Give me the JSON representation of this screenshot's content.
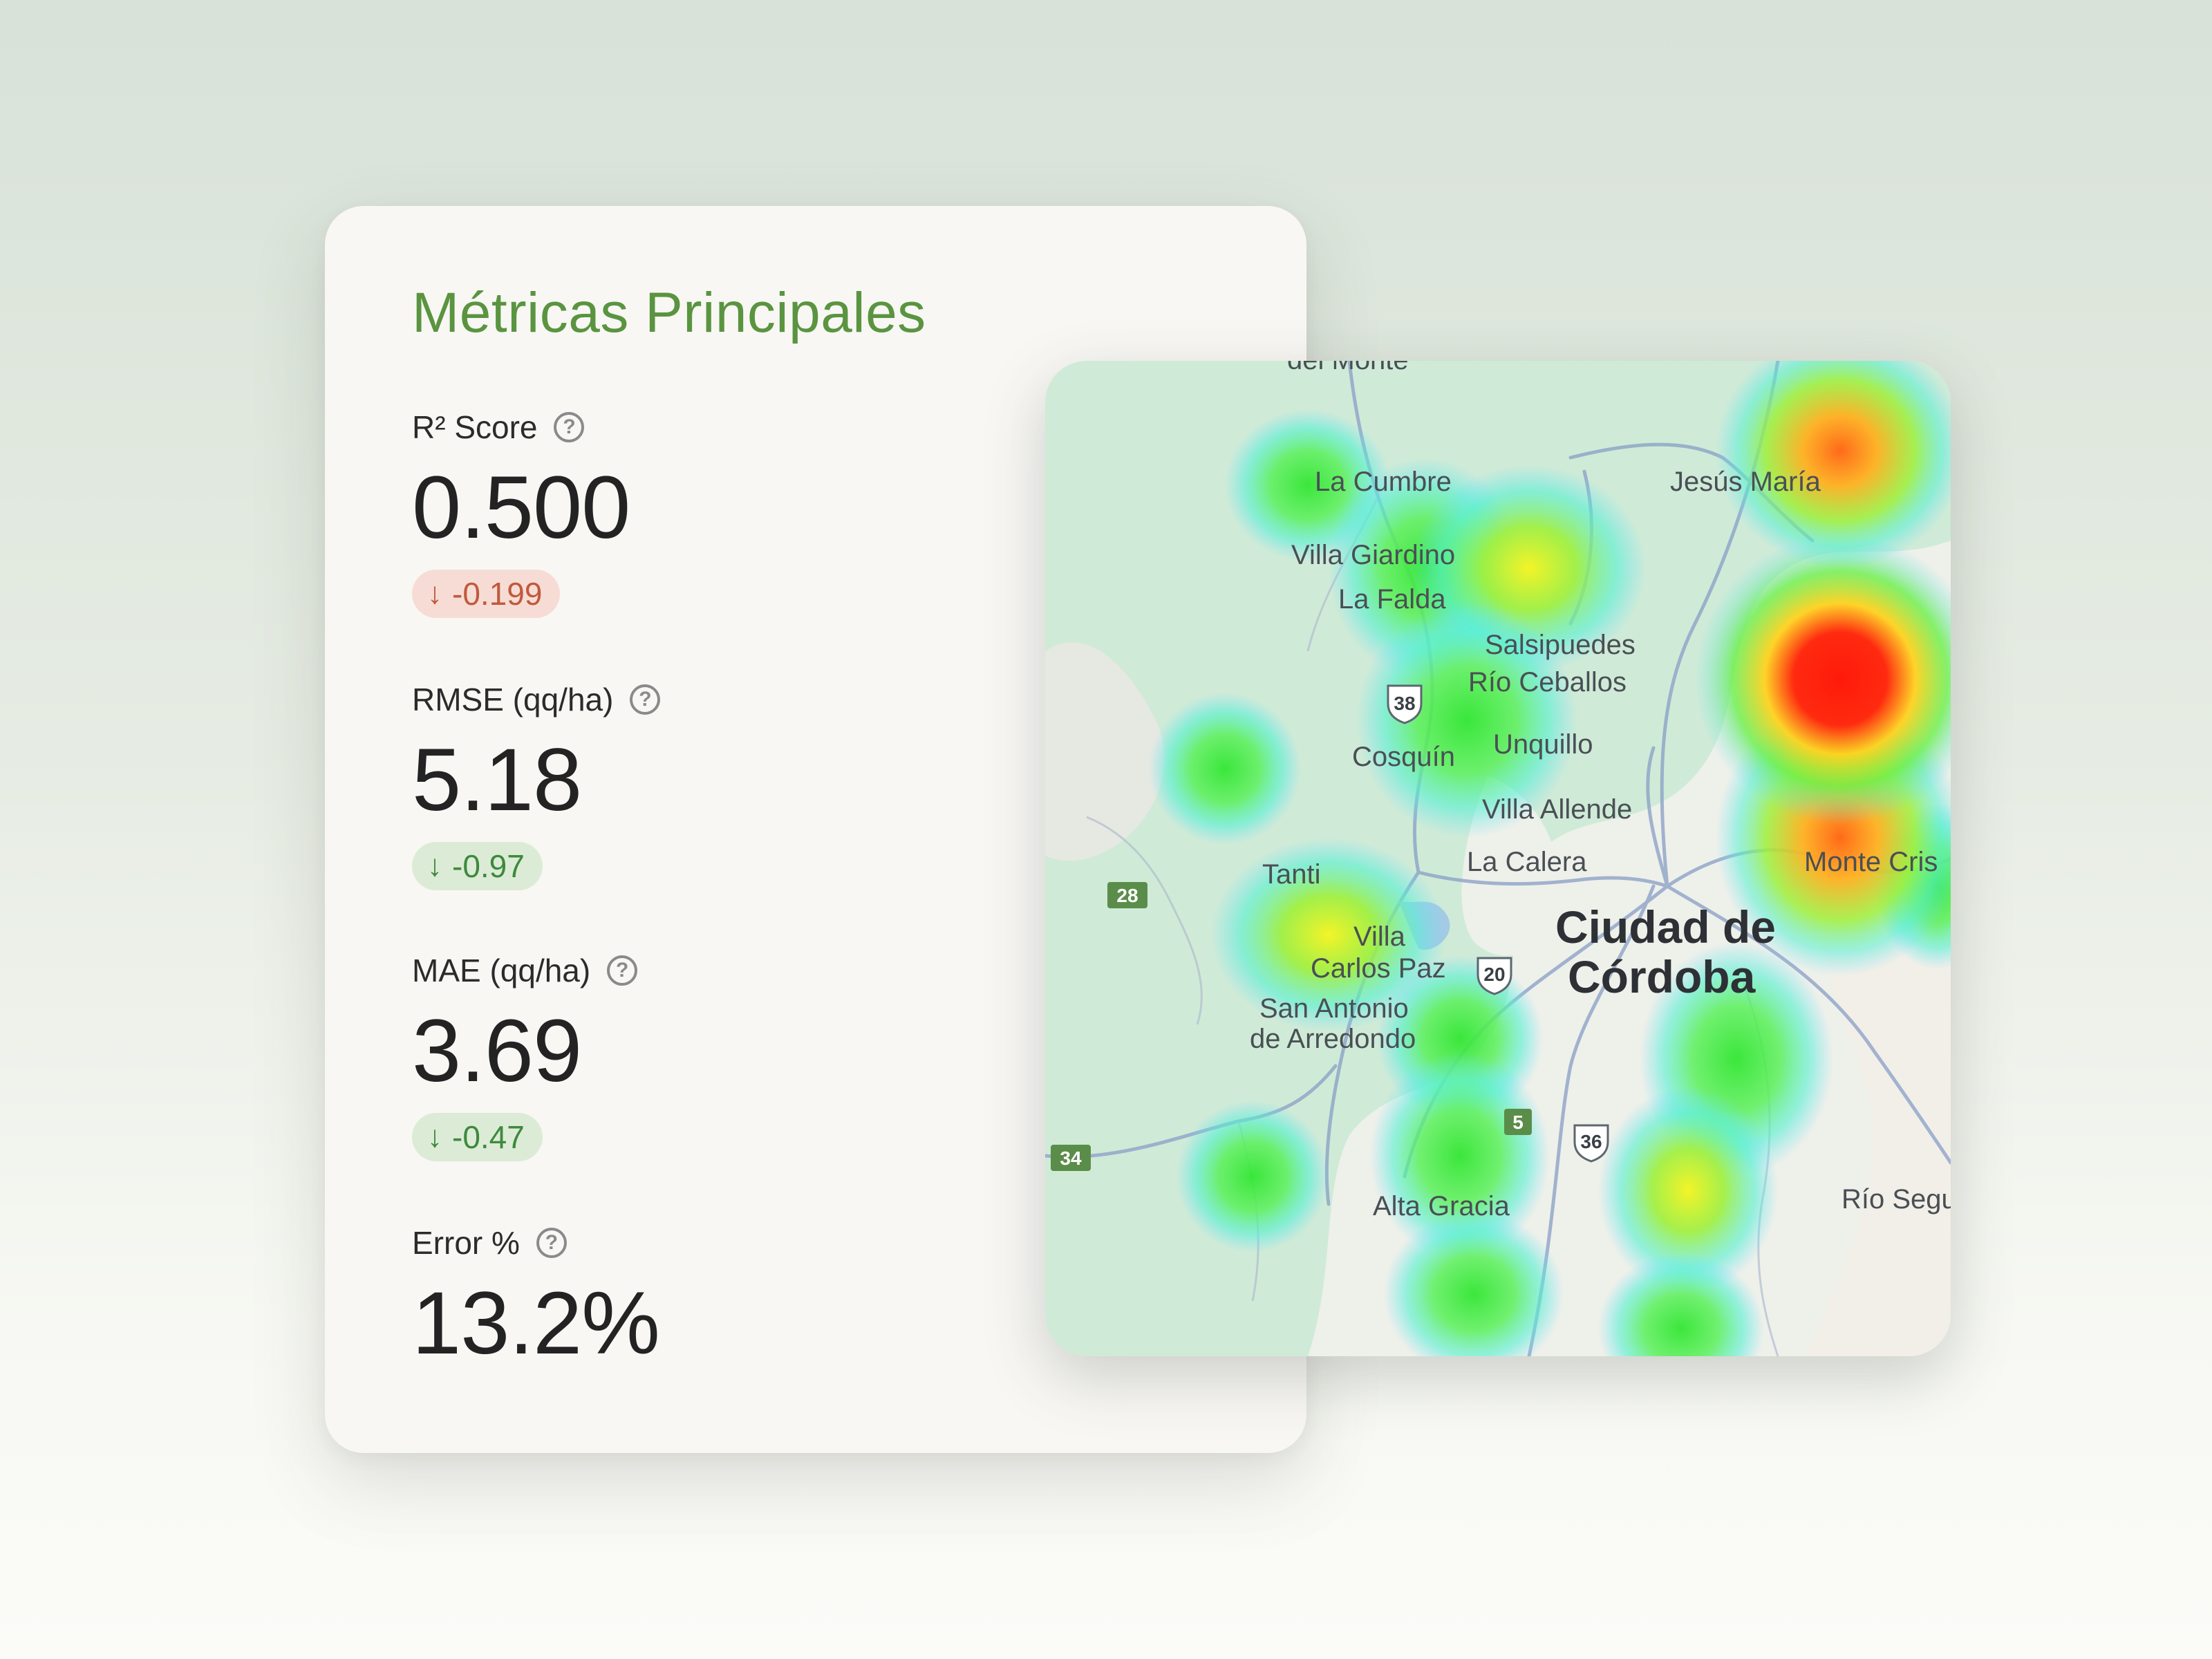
{
  "metrics_panel": {
    "title": "Métricas Principales",
    "metrics": [
      {
        "label": "R² Score",
        "value": "0.500",
        "delta": "-0.199",
        "delta_color": "#c05a3c",
        "help_icon": "question-circle-icon"
      },
      {
        "label": "RMSE (qq/ha)",
        "value": "5.18",
        "delta": "-0.97",
        "delta_color": "#3d8a3d",
        "help_icon": "question-circle-icon"
      },
      {
        "label": "MAE (qq/ha)",
        "value": "3.69",
        "delta": "-0.47",
        "delta_color": "#3d8a3d",
        "help_icon": "question-circle-icon"
      },
      {
        "label": "Error %",
        "value": "13.2%",
        "help_icon": "question-circle-icon"
      }
    ],
    "arrow_glyph": "↓",
    "help_glyph": "?"
  },
  "map": {
    "places": [
      "del Monte",
      "La Cumbre",
      "Jesús María",
      "Villa Giardino",
      "La Falda",
      "Salsipuedes",
      "Río Ceballos",
      "Cosquín",
      "Unquillo",
      "Villa Allende",
      "La Calera",
      "Monte Cris",
      "Tanti",
      "Villa",
      "Carlos Paz",
      "San Antonio",
      "de Arredondo",
      "Alta Gracia",
      "Río Segu"
    ],
    "city": [
      "Ciudad de",
      "Córdoba"
    ],
    "routes": [
      "38",
      "28",
      "20",
      "5",
      "36",
      "34"
    ]
  }
}
